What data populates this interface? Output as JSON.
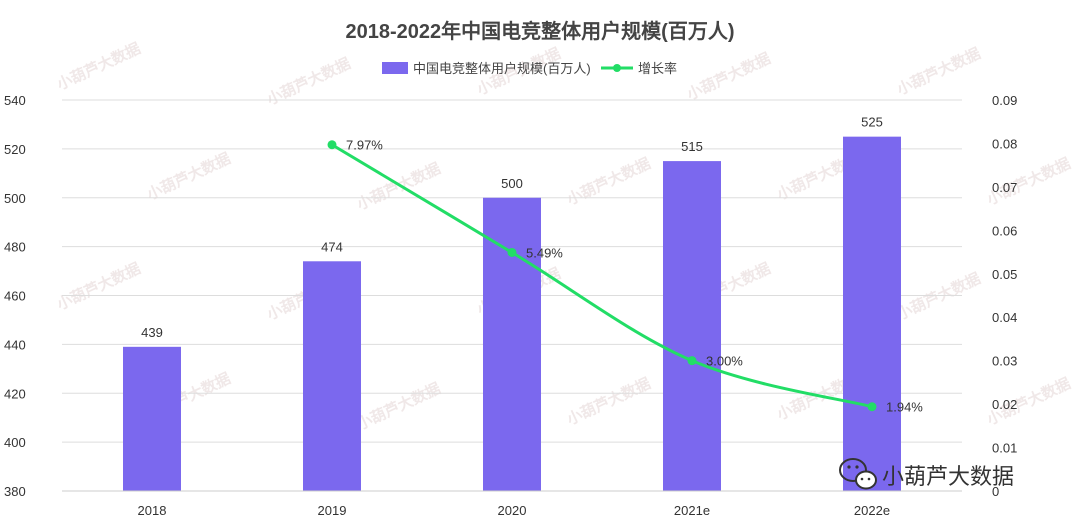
{
  "chart_data": {
    "type": "bar",
    "title": "2018-2022年中国电竞整体用户规模(百万人)",
    "categories": [
      "2018",
      "2019",
      "2020",
      "2021e",
      "2022e"
    ],
    "series": [
      {
        "name": "中国电竞整体用户规模(百万人)",
        "type": "bar",
        "axis": "left",
        "values": [
          439,
          474,
          500,
          515,
          525
        ],
        "color": "#7b68ee"
      },
      {
        "name": "增长率",
        "type": "line",
        "axis": "right",
        "values": [
          null,
          0.0797,
          0.0549,
          0.03,
          0.0194
        ],
        "labels": [
          "",
          "7.97%",
          "5.49%",
          "3.00%",
          "1.94%"
        ],
        "color": "#22dd66"
      }
    ],
    "y_left": {
      "min": 380,
      "max": 540,
      "ticks": [
        "380",
        "400",
        "420",
        "440",
        "460",
        "480",
        "500",
        "520",
        "540"
      ]
    },
    "y_right": {
      "min": 0,
      "max": 0.09,
      "ticks": [
        "0",
        "0.01",
        "0.02",
        "0.03",
        "0.04",
        "0.05",
        "0.06",
        "0.07",
        "0.08",
        "0.09"
      ]
    },
    "grid": true,
    "legend_position": "top-center"
  },
  "watermark": {
    "brand": "小葫芦大数据",
    "icon": "wechat-icon",
    "mark_text": "小葫芦大数据"
  }
}
